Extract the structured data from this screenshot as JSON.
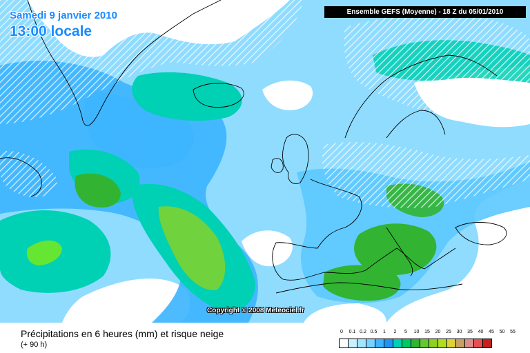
{
  "header": {
    "date": "Samedi 9 janvier 2010",
    "time": "13:00 locale",
    "model": "Ensemble GEFS (Moyenne)   -  18 Z du 05/01/2010"
  },
  "copyright": "Copyright © 2008 Meteociel.fr",
  "footer": {
    "caption": "Précipitations en 6 heures (mm) et risque neige",
    "subcaption": "(+ 90 h)"
  },
  "legend": {
    "labels": [
      "0",
      "0.1",
      "0.2",
      "0.5",
      "1",
      "2",
      "5",
      "10",
      "15",
      "20",
      "25",
      "30",
      "35",
      "40",
      "45",
      "50",
      "55"
    ],
    "colors": [
      "#ffffff",
      "#c8f0ff",
      "#a0e6ff",
      "#78d2ff",
      "#3cb4ff",
      "#1e96f0",
      "#00d0b4",
      "#00c864",
      "#32b432",
      "#64c832",
      "#8cd21e",
      "#b4dc1e",
      "#dcd23c",
      "#c8a064",
      "#dc8c8c",
      "#e65050",
      "#c81e1e"
    ],
    "snow_hatch": "white-diagonal"
  }
}
